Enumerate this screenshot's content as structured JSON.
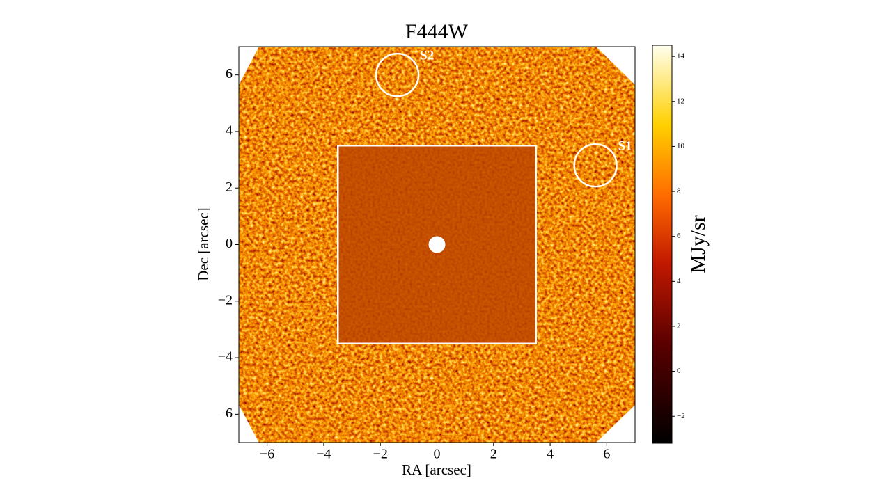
{
  "chart_data": {
    "type": "image",
    "title": "F444W",
    "xlabel": "RA [arcsec]",
    "ylabel": "Dec [arcsec]",
    "xlim": [
      -7,
      7
    ],
    "ylim": [
      -7,
      7
    ],
    "xticks": [
      {
        "value": -6,
        "label": "−6"
      },
      {
        "value": -4,
        "label": "−4"
      },
      {
        "value": -2,
        "label": "−2"
      },
      0,
      2,
      4,
      6
    ],
    "yticks": [
      {
        "value": -6,
        "label": "−6"
      },
      {
        "value": -4,
        "label": "−4"
      },
      {
        "value": -2,
        "label": "−2"
      },
      0,
      2,
      4,
      6
    ],
    "inset": {
      "xlim": [
        -3.5,
        3.5
      ],
      "ylim": [
        -3.5,
        3.5
      ]
    },
    "annotations": [
      {
        "label": "S1",
        "x": 5.6,
        "y": 2.8,
        "radius": 0.75
      },
      {
        "label": "S2",
        "x": -1.4,
        "y": 6.0,
        "radius": 0.75
      }
    ],
    "colorbar": {
      "label": "MJy/sr",
      "clim": [
        -3.2,
        14.5
      ],
      "ticks": [
        {
          "value": -2,
          "label": "−2"
        },
        0,
        2,
        4,
        6,
        8,
        10,
        12,
        14
      ]
    }
  }
}
